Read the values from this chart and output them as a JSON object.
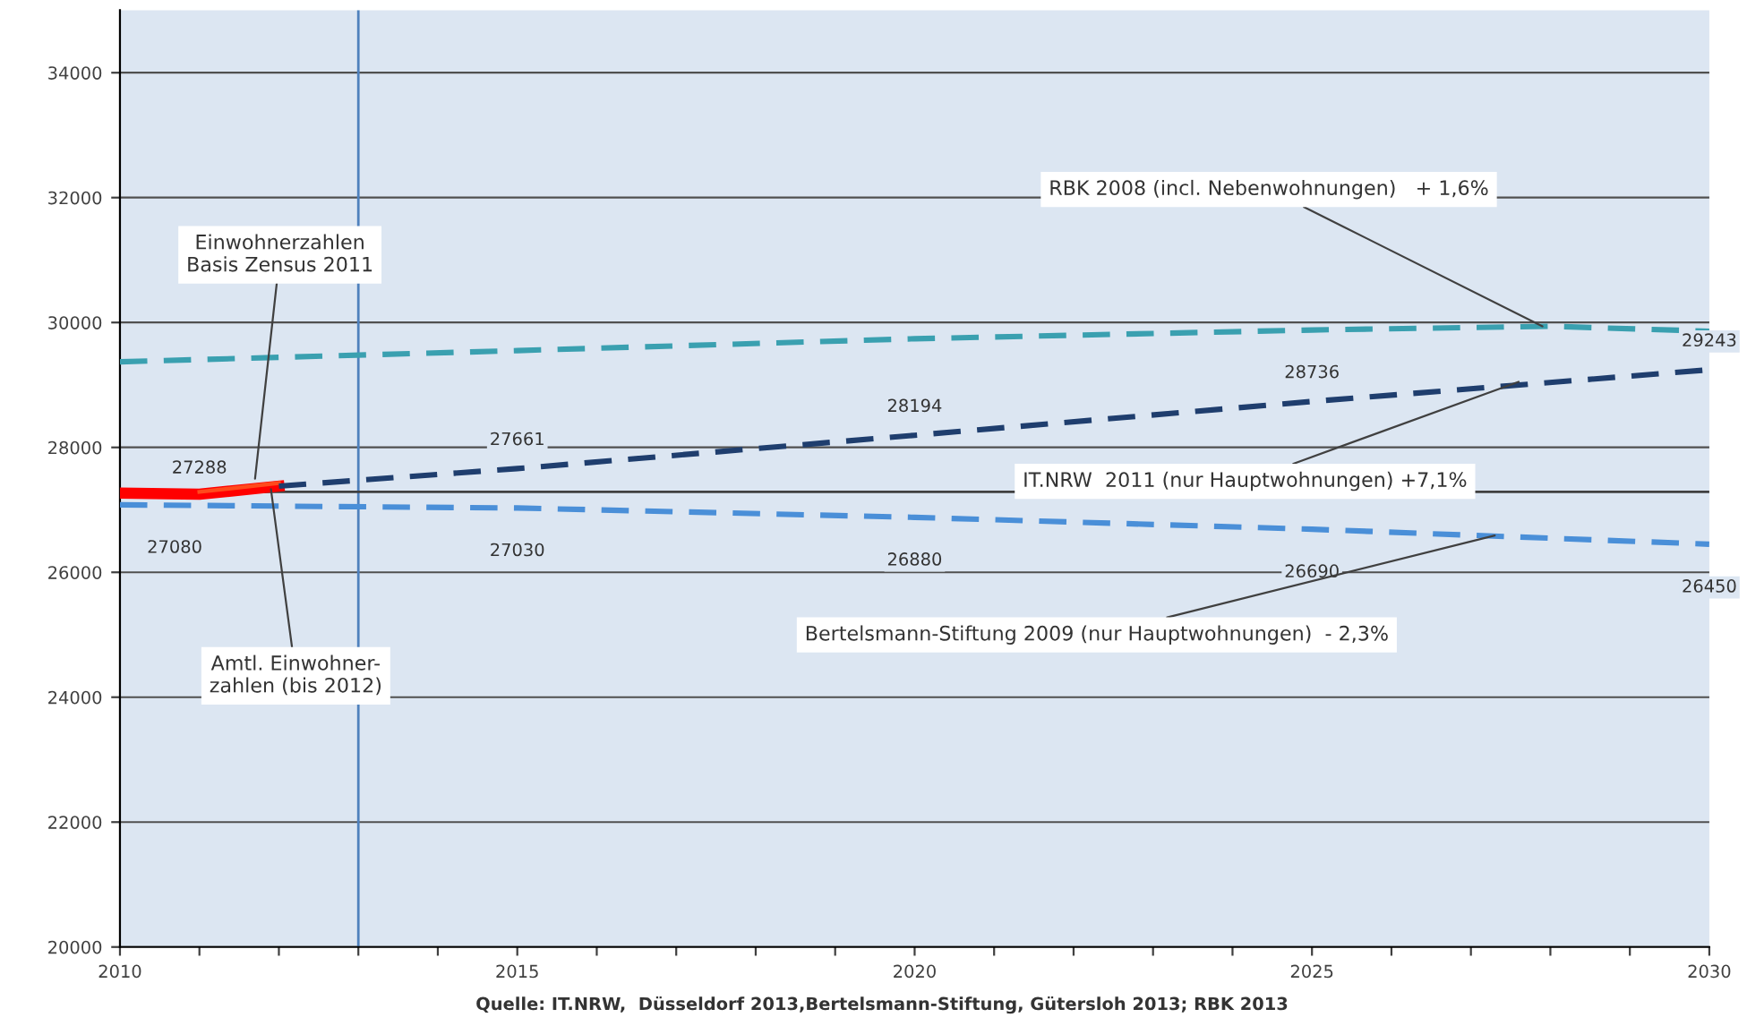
{
  "chart_data": {
    "type": "line",
    "series": [
      {
        "color": "#ff0000",
        "x": [
          2010,
          2011,
          2012
        ],
        "values": [
          27270,
          27250,
          27380
        ],
        "line_style": "solid"
      },
      {
        "color": "#ff4a1c",
        "x": [
          2011,
          2012
        ],
        "values": [
          27288,
          27430
        ],
        "line_style": "solid",
        "value_labels": [
          "27288",
          null
        ]
      },
      {
        "color": "#1f3e6e",
        "x": [
          2012,
          2015,
          2020,
          2025,
          2030
        ],
        "values": [
          27380,
          27661,
          28194,
          28736,
          29243
        ],
        "line_style": "dashed",
        "value_labels": [
          null,
          "27661",
          "28194",
          "28736",
          "29243"
        ]
      },
      {
        "color": "#4a8fd8",
        "x": [
          2010,
          2015,
          2020,
          2025,
          2030
        ],
        "values": [
          27080,
          27030,
          26880,
          26690,
          26450
        ],
        "line_style": "dashed",
        "value_labels": [
          "27080",
          "27030",
          "26880",
          "26690",
          "26450"
        ]
      },
      {
        "color": "#3aa0b0",
        "x": [
          2010,
          2015,
          2020,
          2025,
          2028,
          2030
        ],
        "values": [
          29370,
          29550,
          29740,
          29880,
          29940,
          29860
        ],
        "line_style": "dashed"
      }
    ],
    "xlim": [
      2010,
      2030
    ],
    "xticks": [
      2010,
      {
        "value": 2011,
        "label": null
      },
      {
        "value": 2012,
        "label": null
      },
      {
        "value": 2013,
        "label": null
      },
      {
        "value": 2014,
        "label": null
      },
      2015,
      {
        "value": 2016,
        "label": null
      },
      {
        "value": 2017,
        "label": null
      },
      {
        "value": 2018,
        "label": null
      },
      {
        "value": 2019,
        "label": null
      },
      2020,
      {
        "value": 2021,
        "label": null
      },
      {
        "value": 2022,
        "label": null
      },
      {
        "value": 2023,
        "label": null
      },
      {
        "value": 2024,
        "label": null
      },
      2025,
      {
        "value": 2026,
        "label": null
      },
      {
        "value": 2027,
        "label": null
      },
      {
        "value": 2028,
        "label": null
      },
      {
        "value": 2029,
        "label": null
      },
      2030
    ],
    "ylim": [
      20000,
      35000
    ],
    "yticks": [
      20000,
      22000,
      24000,
      26000,
      28000,
      30000,
      32000,
      34000
    ],
    "grid": "y",
    "ref_lines": [
      {
        "axis": "x",
        "value": 2013,
        "color": "#4f81bd"
      },
      {
        "axis": "y",
        "value": 27288,
        "color": "#404040"
      }
    ],
    "annotations": [
      {
        "text": "Einwohnerzahlen\nBasis Zensus 2011",
        "x": 2011.7,
        "y": 27500
      },
      {
        "text": "Amtl. Einwohner-\nzahlen (bis 2012)",
        "x": 2011.9,
        "y": 27330
      },
      {
        "text": "RBK 2008 (incl. Nebenwohnungen)   + 1,6%",
        "x": 2027.9,
        "y": 29940
      },
      {
        "text": "IT.NRW  2011 (nur Hauptwohnungen) +7,1%",
        "x": 2027.6,
        "y": 29050
      },
      {
        "text": "Bertelsmann-Stiftung 2009 (nur Hauptwohnungen)  - 2,3%",
        "x": 2027.3,
        "y": 26590
      },
      "Quelle: IT.NRW,  Düsseldorf 2013,Bertelsmann-Stiftung, Gütersloh 2013; RBK 2013"
    ]
  }
}
